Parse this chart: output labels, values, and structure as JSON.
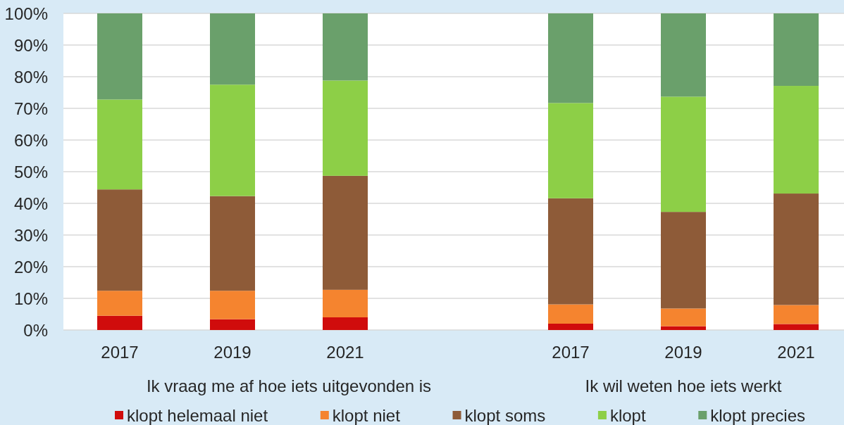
{
  "chart_data": {
    "type": "bar",
    "stacked": true,
    "categories": [
      "2017",
      "2019",
      "2021",
      null,
      "2017",
      "2019",
      "2021"
    ],
    "series": [
      {
        "name": "klopt helemaal niet",
        "color": "#d00c0c",
        "values": [
          4.5,
          3.4,
          4.0,
          null,
          2.0,
          1.2,
          1.9
        ]
      },
      {
        "name": "klopt niet",
        "color": "#f5842f",
        "values": [
          7.9,
          9.0,
          8.7,
          null,
          6.1,
          5.6,
          6.0
        ]
      },
      {
        "name": "klopt soms",
        "color": "#8e5b38",
        "values": [
          32.0,
          29.9,
          36.0,
          null,
          33.5,
          30.5,
          35.2
        ]
      },
      {
        "name": "klopt",
        "color": "#8dcf47",
        "values": [
          28.4,
          35.2,
          30.1,
          null,
          30.1,
          36.4,
          34.0
        ]
      },
      {
        "name": "klopt precies",
        "color": "#6aa06b",
        "values": [
          27.2,
          22.5,
          21.2,
          null,
          28.3,
          26.3,
          22.9
        ]
      }
    ],
    "ylim": [
      0,
      100
    ],
    "yticks": [
      {
        "value": 0,
        "label": "0%"
      },
      {
        "value": 10,
        "label": "10%"
      },
      {
        "value": 20,
        "label": "20%"
      },
      {
        "value": 30,
        "label": "30%"
      },
      {
        "value": 40,
        "label": "40%"
      },
      {
        "value": 50,
        "label": "50%"
      },
      {
        "value": 60,
        "label": "60%"
      },
      {
        "value": 70,
        "label": "70%"
      },
      {
        "value": 80,
        "label": "80%"
      },
      {
        "value": 90,
        "label": "90%"
      },
      {
        "value": 100,
        "label": "100%"
      }
    ],
    "grid": "y",
    "legend": "bottom",
    "annotations": [
      "Ik vraag me af hoe iets uitgevonden is",
      "Ik wil weten hoe iets werkt"
    ]
  }
}
